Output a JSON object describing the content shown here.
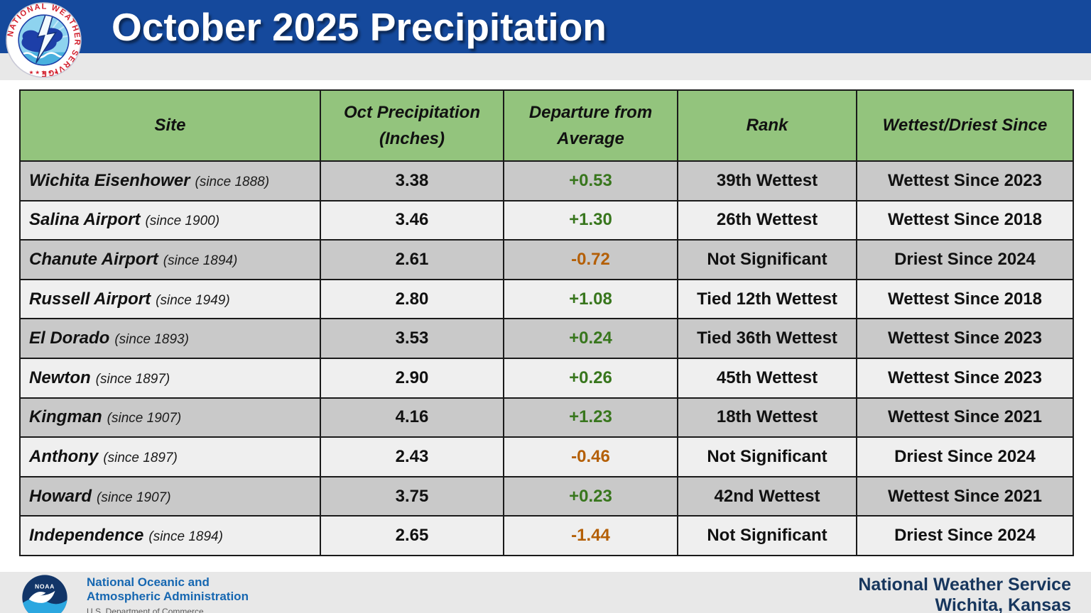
{
  "header": {
    "title": "October 2025 Precipitation"
  },
  "nws_logo": {
    "ring_text": "NATIONAL WEATHER SERVICE",
    "stars": "★ ★ ★ ★ ★"
  },
  "table": {
    "columns": [
      {
        "label": "Site"
      },
      {
        "label": "Oct Precipitation (Inches)"
      },
      {
        "label": "Departure from Average"
      },
      {
        "label": "Rank"
      },
      {
        "label": "Wettest/Driest Since"
      }
    ],
    "rows": [
      {
        "site": "Wichita Eisenhower",
        "since": "(since 1888)",
        "precip": "3.38",
        "departure": "+0.53",
        "rank": "39th Wettest",
        "record": "Wettest Since 2023"
      },
      {
        "site": "Salina Airport",
        "since": "(since 1900)",
        "precip": "3.46",
        "departure": "+1.30",
        "rank": "26th Wettest",
        "record": "Wettest Since 2018"
      },
      {
        "site": "Chanute Airport",
        "since": "(since 1894)",
        "precip": "2.61",
        "departure": "-0.72",
        "rank": "Not Significant",
        "record": "Driest Since 2024"
      },
      {
        "site": "Russell Airport",
        "since": "(since 1949)",
        "precip": "2.80",
        "departure": "+1.08",
        "rank": "Tied 12th Wettest",
        "record": "Wettest Since 2018"
      },
      {
        "site": "El Dorado",
        "since": "(since 1893)",
        "precip": "3.53",
        "departure": "+0.24",
        "rank": "Tied 36th Wettest",
        "record": "Wettest Since 2023"
      },
      {
        "site": "Newton",
        "since": "(since 1897)",
        "precip": "2.90",
        "departure": "+0.26",
        "rank": "45th Wettest",
        "record": "Wettest Since 2023"
      },
      {
        "site": "Kingman",
        "since": "(since 1907)",
        "precip": "4.16",
        "departure": "+1.23",
        "rank": "18th Wettest",
        "record": "Wettest Since 2021"
      },
      {
        "site": "Anthony",
        "since": "(since 1897)",
        "precip": "2.43",
        "departure": "-0.46",
        "rank": "Not Significant",
        "record": "Driest Since 2024"
      },
      {
        "site": "Howard",
        "since": "(since 1907)",
        "precip": "3.75",
        "departure": "+0.23",
        "rank": "42nd Wettest",
        "record": "Wettest Since 2021"
      },
      {
        "site": "Independence",
        "since": "(since 1894)",
        "precip": "2.65",
        "departure": "-1.44",
        "rank": "Not Significant",
        "record": "Driest Since 2024"
      }
    ]
  },
  "footer": {
    "noaa_logo_text": "NOAA",
    "noaa_line1": "National Oceanic and",
    "noaa_line2": "Atmospheric Administration",
    "commerce": "U.S. Department of Commerce",
    "office_line1": "National Weather Service",
    "office_line2": "Wichita, Kansas"
  },
  "colors": {
    "banner_blue": "#15499c",
    "table_header_green": "#93c47d",
    "row_dark": "#c9c9c9",
    "row_light": "#efefef",
    "positive_departure": "#38761d",
    "negative_departure": "#b45f06",
    "footer_navy": "#17365d",
    "noaa_blue": "#1667b1"
  }
}
